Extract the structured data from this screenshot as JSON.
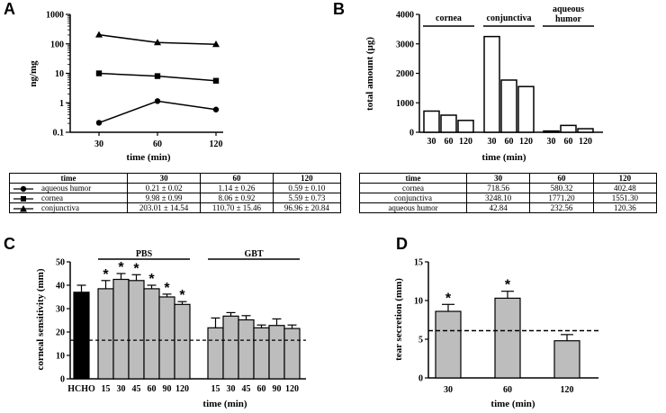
{
  "chart_data": [
    {
      "id": "A",
      "type": "line",
      "panel_label": "A",
      "xlabel": "time (min)",
      "ylabel": "ng/mg",
      "yscale": "log",
      "ylim": [
        0.1,
        1000
      ],
      "yticks": [
        "0.1",
        "1",
        "10",
        "100",
        "1000"
      ],
      "x": [
        30,
        60,
        120
      ],
      "xticks": [
        "30",
        "60",
        "120"
      ],
      "series": [
        {
          "name": "aqueous humor",
          "marker": "circle",
          "values": [
            0.21,
            1.14,
            0.59
          ]
        },
        {
          "name": "cornea",
          "marker": "square",
          "values": [
            9.98,
            8.06,
            5.59
          ]
        },
        {
          "name": "conjunctiva",
          "marker": "triangle",
          "values": [
            203.01,
            110.7,
            96.96
          ]
        }
      ],
      "table": {
        "headers": [
          "time",
          "30",
          "60",
          "120"
        ],
        "rows": [
          {
            "marker": "circle",
            "label": "aqueous humor",
            "cells": [
              "0.21 ± 0.02",
              "1.14 ± 0.26",
              "0.59 ± 0.10"
            ]
          },
          {
            "marker": "square",
            "label": "cornea",
            "cells": [
              "9.98 ± 0.99",
              "8.06 ± 0.92",
              "5.59 ± 0.73"
            ]
          },
          {
            "marker": "triangle",
            "label": "conjunctiva",
            "cells": [
              "203.01 ± 14.54",
              "110.70 ± 15.46",
              "96.96 ± 20.84"
            ]
          }
        ]
      }
    },
    {
      "id": "B",
      "type": "bar",
      "panel_label": "B",
      "xlabel": "time (min)",
      "ylabel": "total amount (µg)",
      "ylim": [
        0,
        4000
      ],
      "yticks": [
        "0",
        "1000",
        "2000",
        "3000",
        "4000"
      ],
      "groups": [
        {
          "name": "cornea",
          "categories": [
            "30",
            "60",
            "120"
          ],
          "values": [
            718.56,
            580.32,
            402.48
          ]
        },
        {
          "name": "conjunctiva",
          "categories": [
            "30",
            "60",
            "120"
          ],
          "values": [
            3248.1,
            1771.2,
            1551.3
          ]
        },
        {
          "name": "aqueous humor",
          "name_lines": [
            "aqueous",
            "humor"
          ],
          "categories": [
            "30",
            "60",
            "120"
          ],
          "values": [
            42.84,
            232.56,
            120.36
          ]
        }
      ],
      "table": {
        "headers": [
          "time",
          "30",
          "60",
          "120"
        ],
        "rows": [
          {
            "label": "cornea",
            "cells": [
              "718.56",
              "580.32",
              "402.48"
            ]
          },
          {
            "label": "conjunctiva",
            "cells": [
              "3248.10",
              "1771.20",
              "1551.30"
            ]
          },
          {
            "label": "aqueous humor",
            "cells": [
              "42.84",
              "232.56",
              "120.36"
            ]
          }
        ]
      }
    },
    {
      "id": "C",
      "type": "bar",
      "panel_label": "C",
      "xlabel": "time (min)",
      "ylabel": "corneal sensitivity (mm)",
      "ylim": [
        0,
        50
      ],
      "yticks": [
        "0",
        "10",
        "20",
        "30",
        "40",
        "50"
      ],
      "reference_line": 16.5,
      "control": {
        "label": "HCHO",
        "value": 37,
        "error": 3,
        "color": "#000000"
      },
      "groups": [
        {
          "name": "PBS",
          "categories": [
            "15",
            "30",
            "45",
            "60",
            "90",
            "120"
          ],
          "values": [
            38.5,
            42.5,
            42,
            38.5,
            35,
            31.8
          ],
          "errors": [
            3.5,
            2.5,
            2.5,
            1.5,
            1.2,
            1.2
          ],
          "significant": [
            true,
            true,
            true,
            true,
            true,
            true
          ]
        },
        {
          "name": "GBT",
          "categories": [
            "15",
            "30",
            "45",
            "60",
            "90",
            "120"
          ],
          "values": [
            21.8,
            26.8,
            25.2,
            21.8,
            22.8,
            21.5
          ],
          "errors": [
            4.2,
            1.5,
            1.8,
            1.2,
            2.8,
            1.5
          ],
          "significant": [
            false,
            false,
            false,
            false,
            false,
            false
          ]
        }
      ],
      "significance_mark": "*",
      "bar_color": "#bdbdbd"
    },
    {
      "id": "D",
      "type": "bar",
      "panel_label": "D",
      "xlabel": "time (min)",
      "ylabel": "tear secretion (mm)",
      "ylim": [
        0,
        15
      ],
      "yticks": [
        "0",
        "5",
        "10",
        "15"
      ],
      "reference_line": 6.1,
      "categories": [
        "30",
        "60",
        "120"
      ],
      "values": [
        8.6,
        10.3,
        4.8
      ],
      "errors": [
        0.9,
        0.9,
        0.8
      ],
      "significant": [
        true,
        true,
        false
      ],
      "significance_mark": "*",
      "bar_color": "#bdbdbd"
    }
  ]
}
